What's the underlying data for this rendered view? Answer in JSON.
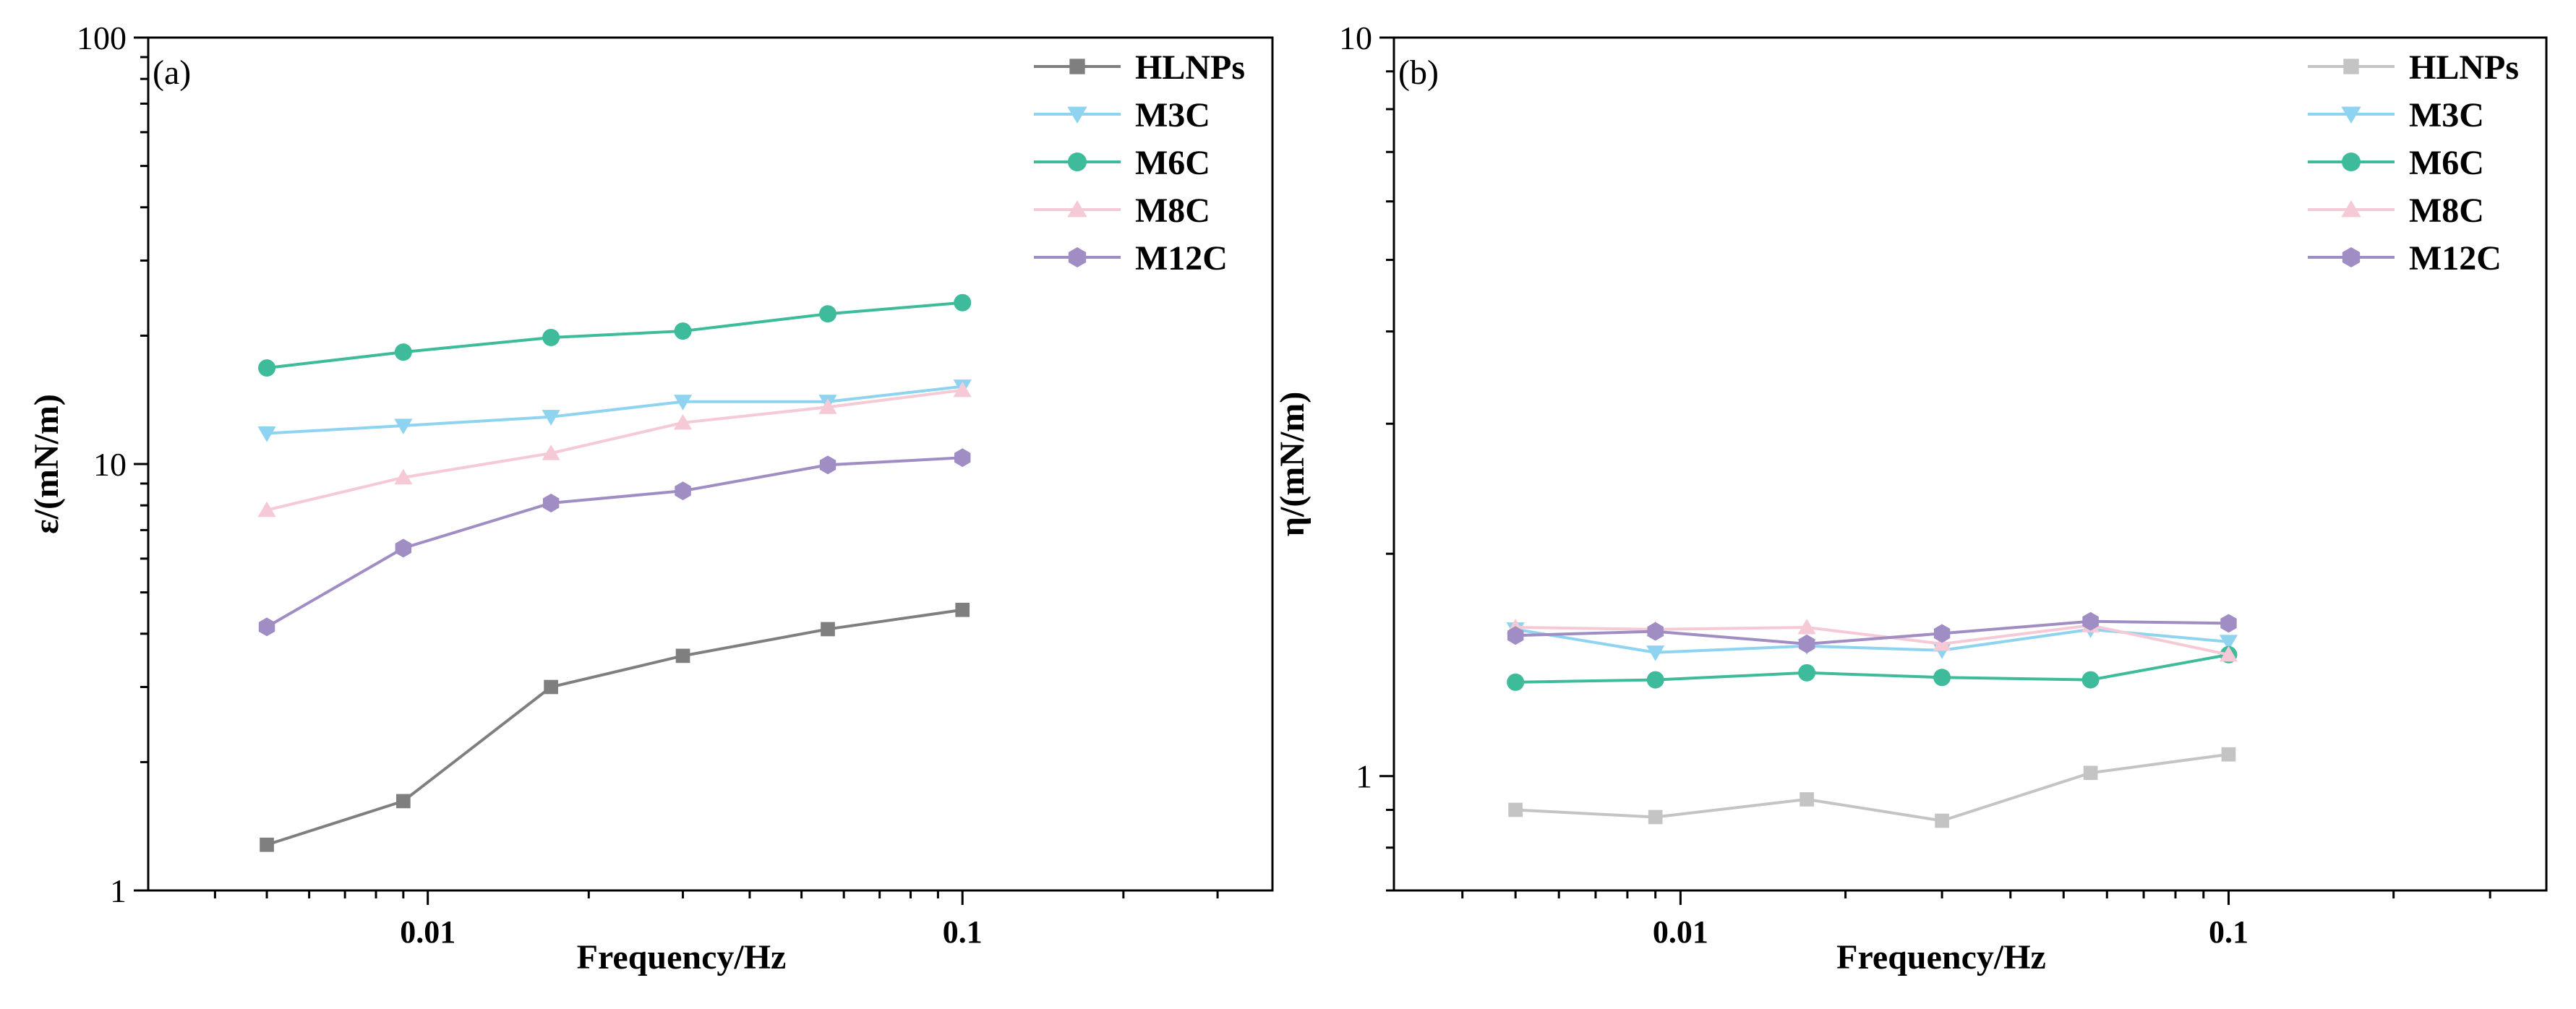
{
  "chart_data": [
    {
      "type": "line",
      "panel_label": "(a)",
      "xlabel": "Frequency/Hz",
      "ylabel": "ε/(mN/m)",
      "xscale": "log",
      "yscale": "log",
      "xlim": [
        0.003,
        0.38
      ],
      "ylim": [
        1,
        100
      ],
      "xticks": [
        {
          "value": 0.01,
          "label": "0.01"
        },
        {
          "value": 0.1,
          "label": "0.1"
        }
      ],
      "yticks": [
        {
          "value": 1,
          "label": "1"
        },
        {
          "value": 10,
          "label": "10"
        },
        {
          "value": 100,
          "label": "100"
        }
      ],
      "legend_position": "top-right",
      "x": [
        0.005,
        0.009,
        0.017,
        0.03,
        0.056,
        0.1
      ],
      "series": [
        {
          "name": "HLNPs",
          "color": "#7f7f7f",
          "marker": "square",
          "values": [
            1.28,
            1.62,
            3.0,
            3.55,
            4.1,
            4.55
          ]
        },
        {
          "name": "M3C",
          "color": "#8ed3ef",
          "marker": "triangle-down",
          "values": [
            11.8,
            12.3,
            12.9,
            14.0,
            14.0,
            15.2
          ]
        },
        {
          "name": "M6C",
          "color": "#3dbb9b",
          "marker": "circle",
          "values": [
            16.8,
            18.3,
            19.8,
            20.5,
            22.5,
            23.9
          ]
        },
        {
          "name": "M8C",
          "color": "#f5c9d6",
          "marker": "triangle-up",
          "values": [
            7.8,
            9.3,
            10.6,
            12.5,
            13.6,
            14.9
          ]
        },
        {
          "name": "M12C",
          "color": "#a08dc4",
          "marker": "hexagon",
          "values": [
            4.15,
            6.35,
            8.1,
            8.65,
            9.95,
            10.35
          ]
        }
      ]
    },
    {
      "type": "line",
      "panel_label": "(b)",
      "xlabel": "Frequency/Hz",
      "ylabel": "η/(mN/m)",
      "xscale": "log",
      "yscale": "log",
      "xlim": [
        0.003,
        0.38
      ],
      "ylim": [
        0.7,
        10
      ],
      "xticks": [
        {
          "value": 0.01,
          "label": "0.01"
        },
        {
          "value": 0.1,
          "label": "0.1"
        }
      ],
      "yticks": [
        {
          "value": 1,
          "label": "1"
        },
        {
          "value": 10,
          "label": "10"
        }
      ],
      "legend_position": "top-right",
      "x": [
        0.005,
        0.009,
        0.017,
        0.03,
        0.056,
        0.1
      ],
      "series": [
        {
          "name": "HLNPs",
          "color": "#c4c4c4",
          "marker": "square",
          "values": [
            0.9,
            0.88,
            0.93,
            0.87,
            1.01,
            1.07
          ]
        },
        {
          "name": "M3C",
          "color": "#8ed3ef",
          "marker": "triangle-down",
          "values": [
            1.58,
            1.47,
            1.5,
            1.48,
            1.58,
            1.52
          ]
        },
        {
          "name": "M6C",
          "color": "#3dbb9b",
          "marker": "circle",
          "values": [
            1.34,
            1.35,
            1.38,
            1.36,
            1.35,
            1.46
          ]
        },
        {
          "name": "M8C",
          "color": "#f5c9d6",
          "marker": "triangle-up",
          "values": [
            1.59,
            1.58,
            1.59,
            1.51,
            1.6,
            1.46
          ]
        },
        {
          "name": "M12C",
          "color": "#a08dc4",
          "marker": "hexagon",
          "values": [
            1.55,
            1.57,
            1.51,
            1.56,
            1.62,
            1.61
          ]
        }
      ]
    }
  ]
}
